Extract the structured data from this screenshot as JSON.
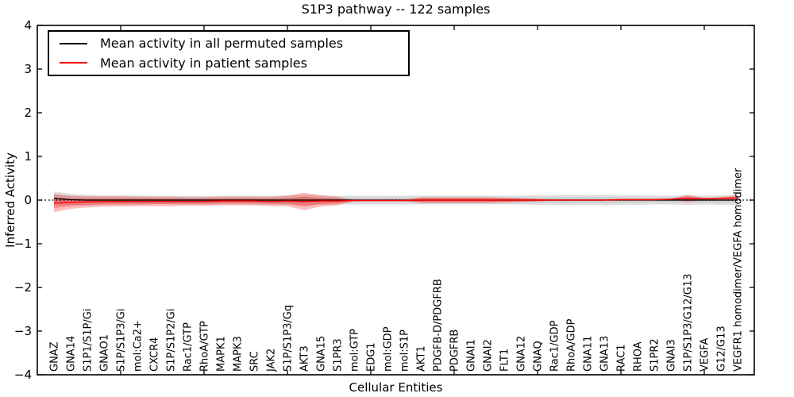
{
  "figure": {
    "title": "S1P3 pathway -- 122 samples",
    "xlabel": "Cellular Entities",
    "ylabel": "Inferred Activity"
  },
  "legend": {
    "items": [
      {
        "label": "Mean activity in all permuted samples",
        "color": "#000000"
      },
      {
        "label": "Mean activity in patient samples",
        "color": "#ff0000"
      }
    ]
  },
  "colors": {
    "permuted_line": "#000000",
    "patient_line": "#ff0000",
    "permuted_band": "rgba(0,0,0,0.13)",
    "patient_band": "rgba(255,0,0,0.25)",
    "axis": "#000000"
  },
  "chart_data": {
    "type": "line",
    "title": "S1P3 pathway -- 122 samples",
    "xlabel": "Cellular Entities",
    "ylabel": "Inferred Activity",
    "ylim": [
      -4,
      4
    ],
    "yticks": [
      -4,
      -3,
      -2,
      -1,
      0,
      1,
      2,
      3,
      4
    ],
    "xticks": [
      5,
      10,
      15,
      20,
      25,
      30,
      35,
      40
    ],
    "zero_line": {
      "y": 0,
      "style": "dotted"
    },
    "categories": [
      "GNAZ",
      "GNA14",
      "S1P1/S1P/Gi",
      "GNAO1",
      "S1P/S1P3/Gi",
      "mol:Ca2+",
      "CXCR4",
      "S1P/S1P2/Gi",
      "Rac1/GTP",
      "RhoA/GTP",
      "MAPK1",
      "MAPK3",
      "SRC",
      "JAK2",
      "S1P/S1P3/Gq",
      "AKT3",
      "GNA15",
      "S1PR3",
      "mol:GTP",
      "EDG1",
      "mol:GDP",
      "mol:S1P",
      "AKT1",
      "PDGFB-D/PDGFRB",
      "PDGFRB",
      "GNAI1",
      "GNAI2",
      "FLT1",
      "GNA12",
      "GNAQ",
      "Rac1/GDP",
      "RhoA/GDP",
      "GNA11",
      "GNA13",
      "RAC1",
      "RHOA",
      "S1PR2",
      "GNAI3",
      "S1P/S1P3/G12/G13",
      "VEGFA",
      "G12/G13",
      "VEGFR1 homodimer/VEGFA homodimer"
    ],
    "series": [
      {
        "name": "Mean activity in all permuted samples",
        "color": "#000000",
        "values": [
          0.04,
          0.01,
          0,
          0,
          0,
          0,
          0,
          0,
          0,
          0,
          0,
          0,
          0,
          0,
          0,
          0,
          0,
          0,
          0,
          0,
          0,
          0,
          0,
          0,
          0,
          0,
          0,
          0,
          0,
          0,
          0,
          0,
          0,
          0,
          0,
          0,
          0,
          0,
          0,
          0,
          0,
          0
        ],
        "band_halfwidth": [
          0.16,
          0.13,
          0.12,
          0.11,
          0.11,
          0.11,
          0.1,
          0.1,
          0.1,
          0.1,
          0.1,
          0.1,
          0.1,
          0.1,
          0.11,
          0.13,
          0.11,
          0.1,
          0.1,
          0.1,
          0.1,
          0.1,
          0.1,
          0.1,
          0.1,
          0.1,
          0.1,
          0.1,
          0.1,
          0.11,
          0.11,
          0.12,
          0.11,
          0.12,
          0.11,
          0.11,
          0.1,
          0.1,
          0.11,
          0.1,
          0.11,
          0.12
        ]
      },
      {
        "name": "Mean activity in patient samples",
        "color": "#ff0000",
        "values": [
          -0.07,
          -0.05,
          -0.04,
          -0.03,
          -0.03,
          -0.03,
          -0.03,
          -0.03,
          -0.03,
          -0.03,
          -0.02,
          -0.02,
          -0.02,
          -0.03,
          -0.02,
          -0.03,
          -0.02,
          -0.02,
          -0.01,
          -0.01,
          -0.01,
          -0.01,
          0,
          0,
          0,
          0,
          0,
          0,
          0,
          0,
          0,
          0,
          0,
          0,
          0.01,
          0.01,
          0.01,
          0.02,
          0.04,
          0.03,
          0.04,
          0.05
        ],
        "band_halfwidth": [
          0.21,
          0.15,
          0.13,
          0.12,
          0.12,
          0.11,
          0.11,
          0.11,
          0.1,
          0.1,
          0.1,
          0.1,
          0.1,
          0.11,
          0.12,
          0.2,
          0.13,
          0.1,
          0.01,
          0.01,
          0.01,
          0.01,
          0.07,
          0.07,
          0.07,
          0.07,
          0.07,
          0.06,
          0.05,
          0.03,
          0.01,
          0.01,
          0.01,
          0.01,
          0.01,
          0.01,
          0.01,
          0.01,
          0.08,
          0.02,
          0.03,
          0.06
        ]
      }
    ]
  }
}
